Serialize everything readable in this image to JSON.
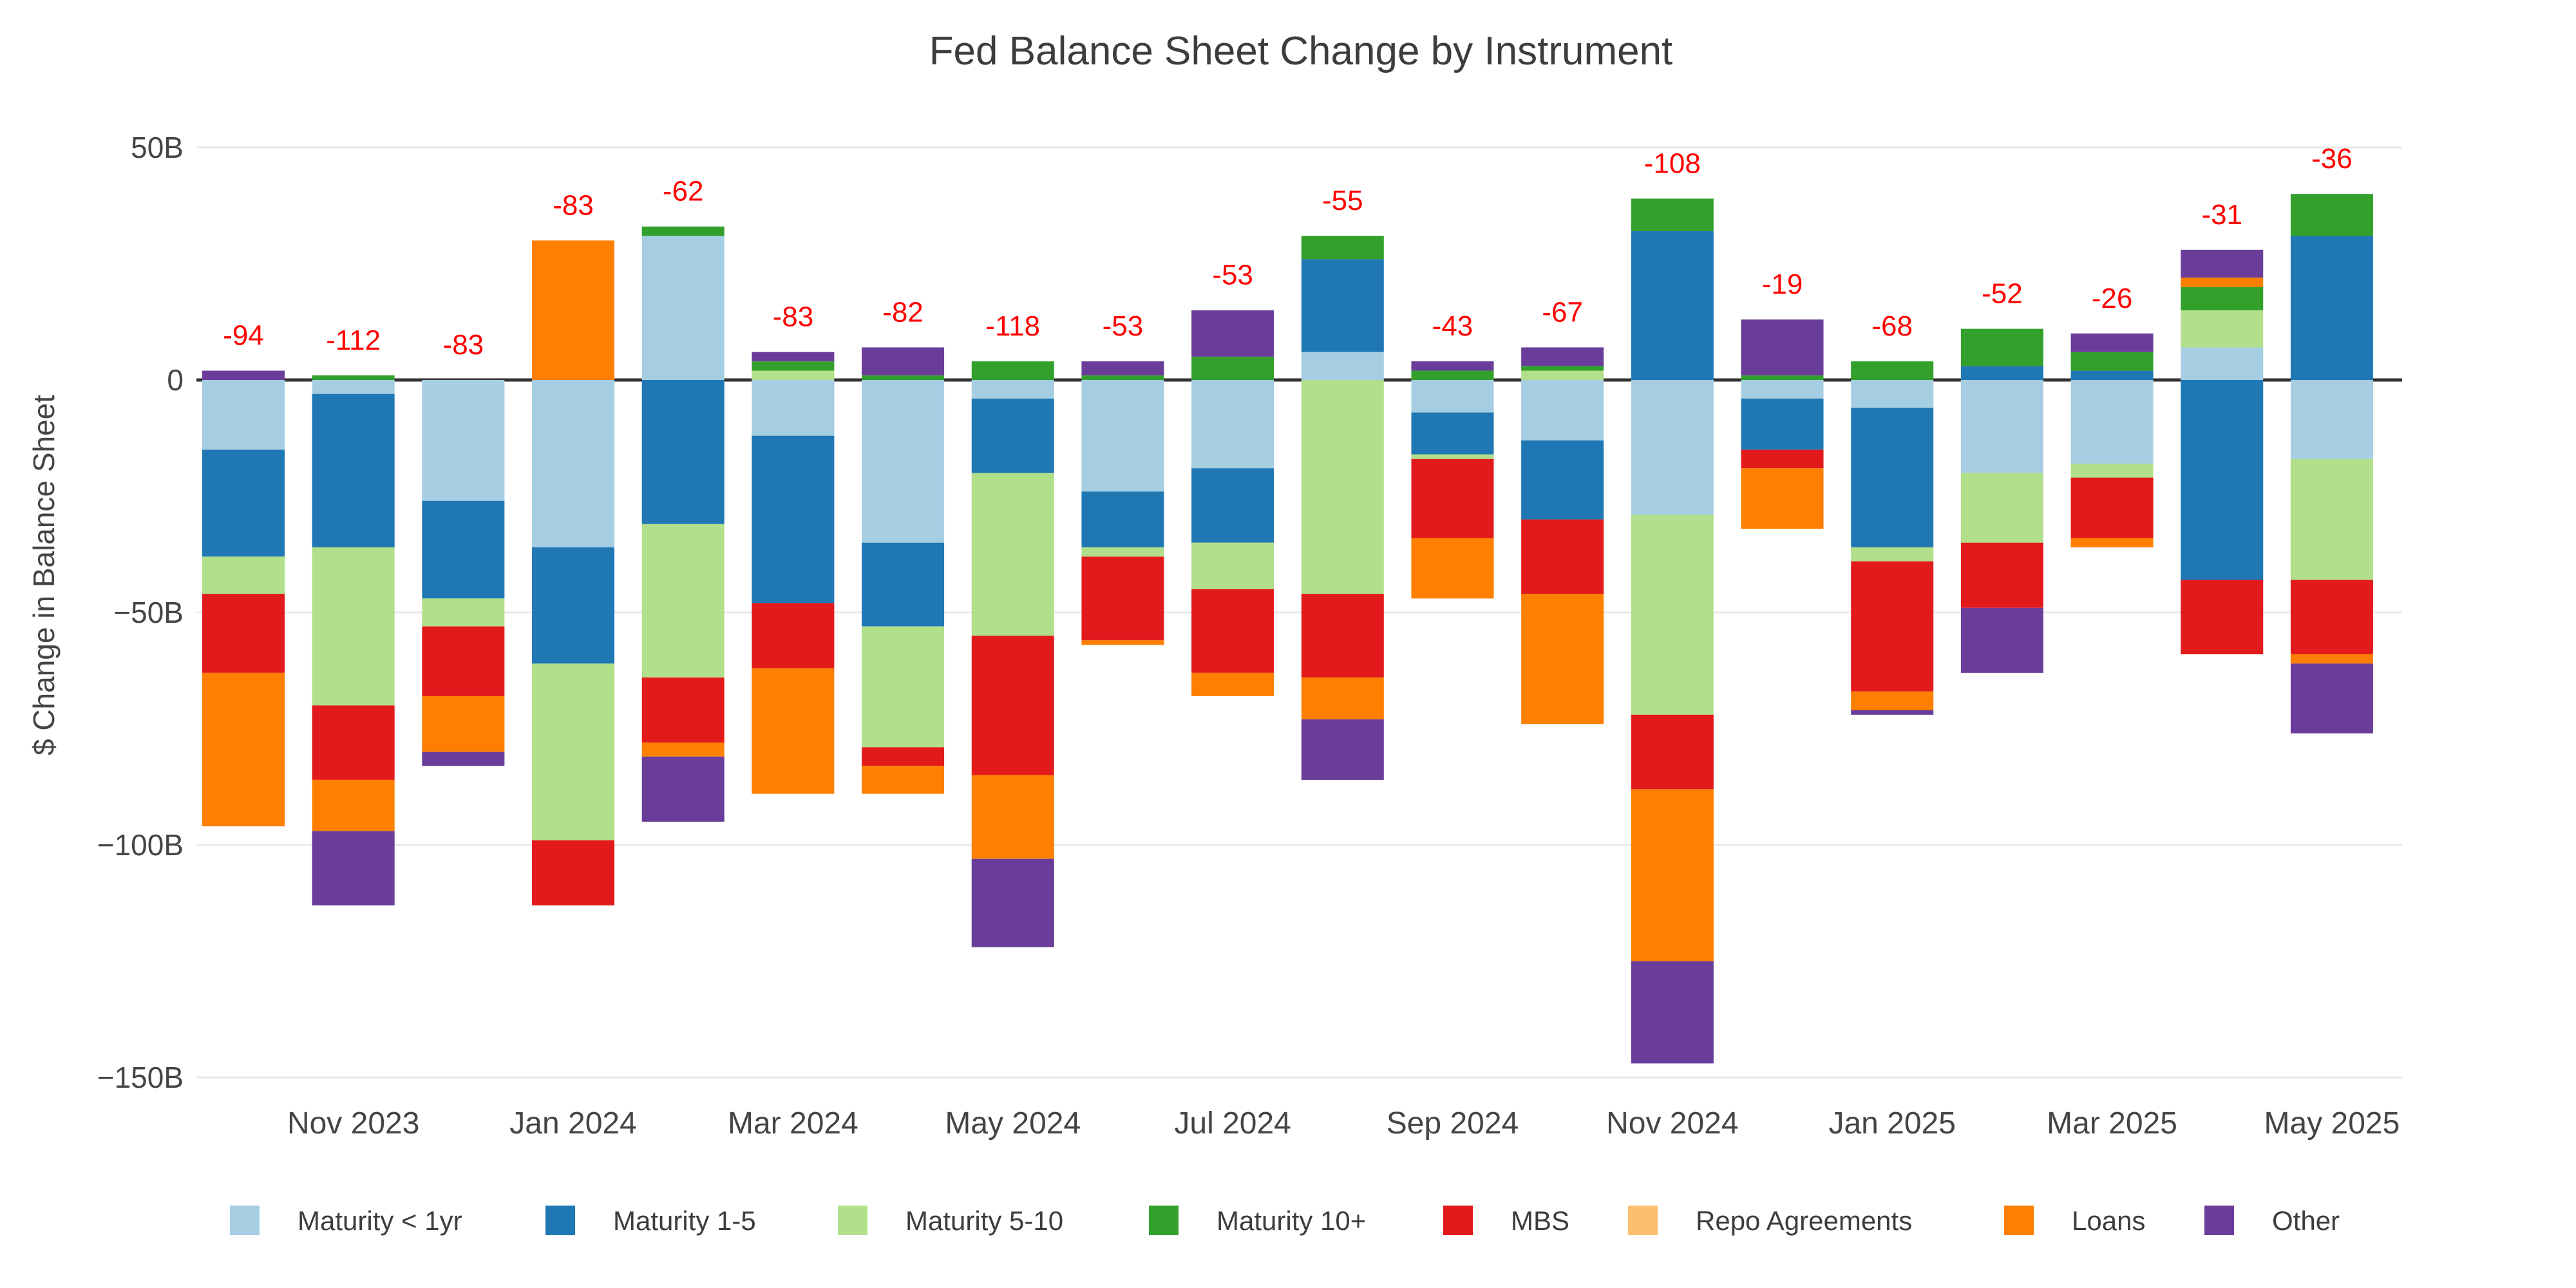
{
  "chart_data": {
    "type": "bar",
    "barmode": "relative-stacked",
    "title": "Fed Balance Sheet Change by Instrument",
    "xlabel": "",
    "ylabel": "$ Change in Balance Sheet",
    "ylim": [
      -160,
      60
    ],
    "grid": "horizontal",
    "legend_position": "bottom-center",
    "axis_text_color": "#444444",
    "title_color": "#3d3d3d",
    "gridline_color": "#e9e9e9",
    "zeroline_color": "#333333",
    "annotation_color": "#ff0000",
    "y_ticks": [
      {
        "v": 50,
        "label": "50B"
      },
      {
        "v": 0,
        "label": "0"
      },
      {
        "v": -50,
        "label": "−50B"
      },
      {
        "v": -100,
        "label": "−100B"
      },
      {
        "v": -150,
        "label": "−150B"
      }
    ],
    "categories": [
      "Oct 2023",
      "Nov 2023",
      "Dec 2023",
      "Jan 2024",
      "Feb 2024",
      "Mar 2024",
      "Apr 2024",
      "May 2024",
      "Jun 2024",
      "Jul 2024",
      "Aug 2024",
      "Sep 2024",
      "Oct 2024",
      "Nov 2024",
      "Dec 2024",
      "Jan 2025",
      "Feb 2025",
      "Mar 2025",
      "Apr 2025",
      "May 2025"
    ],
    "x_ticks": [
      {
        "index": 1,
        "label": "Nov 2023"
      },
      {
        "index": 3,
        "label": "Jan 2024"
      },
      {
        "index": 5,
        "label": "Mar 2024"
      },
      {
        "index": 7,
        "label": "May 2024"
      },
      {
        "index": 9,
        "label": "Jul 2024"
      },
      {
        "index": 11,
        "label": "Sep 2024"
      },
      {
        "index": 13,
        "label": "Nov 2024"
      },
      {
        "index": 15,
        "label": "Jan 2025"
      },
      {
        "index": 17,
        "label": "Mar 2025"
      },
      {
        "index": 19,
        "label": "May 2025"
      }
    ],
    "series": [
      {
        "name": "Maturity < 1yr",
        "color": "#a6cee3",
        "values": [
          -15,
          -3,
          -26,
          -36,
          31,
          -12,
          -35,
          -4,
          -24,
          -19,
          6,
          -7,
          -13,
          -29,
          -4,
          -6,
          -20,
          -18,
          7,
          -17
        ]
      },
      {
        "name": "Maturity 1-5",
        "color": "#1f78b4",
        "values": [
          -23,
          -33,
          -21,
          -25,
          -31,
          -36,
          -18,
          -16,
          -12,
          -16,
          20,
          -9,
          -17,
          32,
          -11,
          -30,
          3,
          2,
          -43,
          31
        ]
      },
      {
        "name": "Maturity 5-10",
        "color": "#b2df8a",
        "values": [
          -8,
          -34,
          -6,
          -38,
          -33,
          2,
          -26,
          -35,
          -2,
          -10,
          -46,
          -1,
          2,
          -43,
          0,
          -3,
          -15,
          -3,
          8,
          -26
        ]
      },
      {
        "name": "Maturity 10+",
        "color": "#33a02c",
        "values": [
          0,
          1,
          0,
          0,
          2,
          2,
          1,
          4,
          1,
          5,
          5,
          2,
          1,
          7,
          1,
          4,
          8,
          4,
          5,
          9
        ]
      },
      {
        "name": "MBS",
        "color": "#e31a1c",
        "values": [
          -17,
          -16,
          -15,
          -14,
          -14,
          -14,
          -4,
          -30,
          -18,
          -18,
          -18,
          -17,
          -16,
          -16,
          -4,
          -28,
          -14,
          -13,
          -16,
          -16
        ]
      },
      {
        "name": "Repo Agreements",
        "color": "#fdbf6f",
        "values": [
          0,
          0,
          0,
          0,
          0,
          0,
          0,
          0,
          0,
          0,
          0,
          0,
          0,
          0,
          0,
          0,
          0,
          0,
          0,
          0
        ]
      },
      {
        "name": "Loans",
        "color": "#ff7f00",
        "values": [
          -33,
          -11,
          -12,
          30,
          -3,
          -27,
          -6,
          -18,
          -1,
          -5,
          -9,
          -13,
          -28,
          -37,
          -13,
          -4,
          0,
          -2,
          2,
          -2
        ]
      },
      {
        "name": "Other",
        "color": "#6a3d9a",
        "values": [
          2,
          -16,
          -3,
          0,
          -14,
          2,
          6,
          -19,
          3,
          10,
          -13,
          2,
          4,
          -22,
          12,
          -1,
          -14,
          4,
          6,
          -15
        ]
      }
    ],
    "annotations": [
      "-94",
      "-112",
      "-83",
      "-83",
      "-62",
      "-83",
      "-82",
      "-118",
      "-53",
      "-53",
      "-55",
      "-43",
      "-67",
      "-108",
      "-19",
      "-68",
      "-52",
      "-26",
      "-31",
      "-36"
    ]
  }
}
